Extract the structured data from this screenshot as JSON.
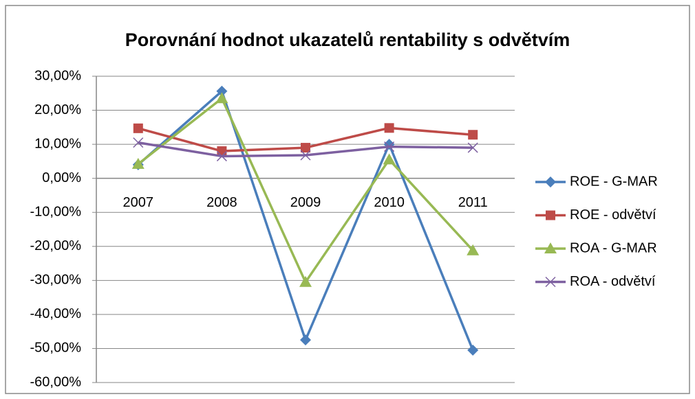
{
  "chart_data": {
    "type": "line",
    "title": "Porovnání hodnot ukazatelů rentability s odvětvím",
    "categories": [
      "2007",
      "2008",
      "2009",
      "2010",
      "2011"
    ],
    "series": [
      {
        "name": "ROE - G-MAR",
        "color": "#4a7ebb",
        "marker": "diamond",
        "values": [
          4.0,
          25.6,
          -47.5,
          10.0,
          -50.5
        ]
      },
      {
        "name": "ROE - odvětví",
        "color": "#be4b48",
        "marker": "square",
        "values": [
          14.7,
          8.0,
          9.0,
          14.8,
          12.8
        ]
      },
      {
        "name": "ROA - G-MAR",
        "color": "#98b954",
        "marker": "triangle",
        "values": [
          4.2,
          23.5,
          -30.5,
          5.5,
          -21.2
        ]
      },
      {
        "name": "ROA - odvětví",
        "color": "#7d60a0",
        "marker": "x",
        "values": [
          10.5,
          6.5,
          6.8,
          9.3,
          9.0
        ]
      }
    ],
    "ylim": [
      -60,
      30
    ],
    "yticks": [
      {
        "value": -60,
        "label": "-60,00%"
      },
      {
        "value": -50,
        "label": "-50,00%"
      },
      {
        "value": -40,
        "label": "-40,00%"
      },
      {
        "value": -30,
        "label": "-30,00%"
      },
      {
        "value": -20,
        "label": "-20,00%"
      },
      {
        "value": -10,
        "label": "-10,00%"
      },
      {
        "value": 0,
        "label": "0,00%"
      },
      {
        "value": 10,
        "label": "10,00%"
      },
      {
        "value": 20,
        "label": "20,00%"
      },
      {
        "value": 30,
        "label": "30,00%"
      }
    ],
    "grid": true,
    "legend": "right"
  }
}
